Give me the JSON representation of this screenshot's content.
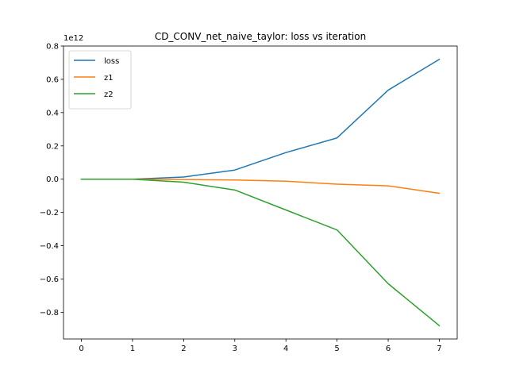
{
  "chart_data": {
    "type": "line",
    "title": "CD_CONV_net_naive_taylor: loss vs iteration",
    "xlabel": "",
    "ylabel": "",
    "y_offset_text": "1e12",
    "x": [
      0,
      1,
      2,
      3,
      4,
      5,
      6,
      7
    ],
    "xlim": [
      -0.35,
      7.35
    ],
    "ylim": [
      -0.96,
      0.8
    ],
    "x_ticks": [
      0,
      1,
      2,
      3,
      4,
      5,
      6,
      7
    ],
    "y_ticks": [
      -0.8,
      -0.6,
      -0.4,
      -0.2,
      0.0,
      0.2,
      0.4,
      0.6,
      0.8
    ],
    "y_tick_labels": [
      "−0.8",
      "−0.6",
      "−0.4",
      "−0.2",
      "0.0",
      "0.2",
      "0.4",
      "0.6",
      "0.8"
    ],
    "grid": false,
    "legend_position": "top-left",
    "series": [
      {
        "name": "loss",
        "color": "#1f77b4",
        "values": [
          0.0,
          0.0,
          0.013,
          0.055,
          0.16,
          0.248,
          0.535,
          0.72
        ]
      },
      {
        "name": "z1",
        "color": "#ff7f0e",
        "values": [
          0.0,
          0.0,
          -0.002,
          -0.005,
          -0.012,
          -0.03,
          -0.04,
          -0.085
        ]
      },
      {
        "name": "z2",
        "color": "#2ca02c",
        "values": [
          0.0,
          0.0,
          -0.018,
          -0.065,
          -0.185,
          -0.305,
          -0.628,
          -0.88
        ]
      }
    ]
  }
}
